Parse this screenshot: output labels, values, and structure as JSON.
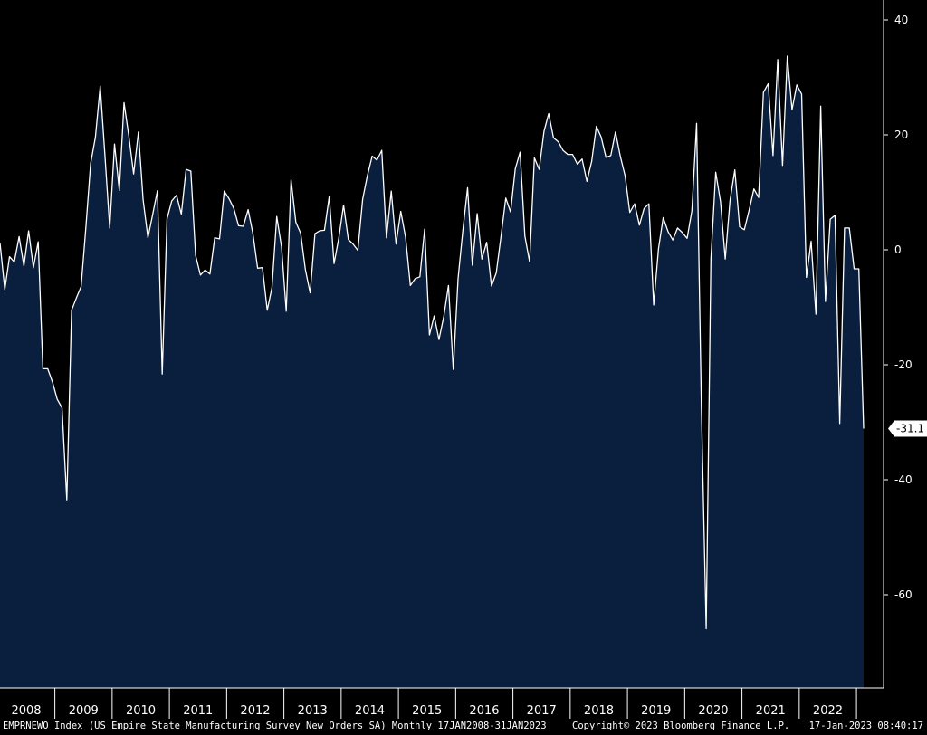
{
  "chart_data": {
    "type": "area",
    "title": "",
    "xlabel": "",
    "ylabel": "",
    "ylim": [
      -75,
      40
    ],
    "y_ticks": [
      40,
      20,
      0,
      -20,
      -40,
      -60
    ],
    "x_ticks": [
      "2008",
      "2009",
      "2010",
      "2011",
      "2012",
      "2013",
      "2014",
      "2015",
      "2016",
      "2017",
      "2018",
      "2019",
      "2020",
      "2021",
      "2022"
    ],
    "grid": false,
    "legend": "none",
    "last_value_label": "-31.1",
    "series": [
      {
        "values": [
          1.2,
          -6.9,
          -1.2,
          -2.1,
          2.3,
          -2.8,
          3.3,
          -3.1,
          1.4,
          -20.7,
          -20.7,
          -23.0,
          -26.0,
          -27.5,
          -43.5,
          -10.5,
          -8.4,
          -6.4,
          4.0,
          15.0,
          19.6,
          28.5,
          16.2,
          3.8,
          18.4,
          10.3,
          25.6,
          19.8,
          13.2,
          20.5,
          8.7,
          2.1,
          6.2,
          10.3,
          -21.6,
          5.4,
          8.5,
          9.5,
          6.2,
          14.0,
          13.7,
          -1.0,
          -4.4,
          -3.5,
          -4.2,
          2.1,
          1.9,
          10.2,
          8.9,
          7.2,
          4.2,
          4.1,
          7.0,
          2.9,
          -3.2,
          -3.1,
          -10.5,
          -6.6,
          5.8,
          0.5,
          -10.7,
          12.2,
          4.8,
          2.9,
          -3.4,
          -7.5,
          2.8,
          3.3,
          3.4,
          9.3,
          -2.4,
          2.0,
          7.8,
          1.8,
          1.0,
          -0.1,
          8.8,
          12.9,
          16.3,
          15.6,
          17.3,
          2.1,
          10.2,
          1.0,
          6.7,
          2.2,
          -6.2,
          -5.0,
          -4.7,
          3.6,
          -14.8,
          -11.5,
          -15.6,
          -11.6,
          -6.2,
          -20.8,
          -5.0,
          3.4,
          10.8,
          -2.7,
          6.3,
          -1.6,
          1.3,
          -6.3,
          -4.0,
          2.3,
          9.0,
          6.6,
          14.1,
          17.0,
          2.4,
          -2.1,
          16.0,
          14.0,
          20.6,
          23.7,
          19.5,
          18.8,
          17.3,
          16.6,
          16.6,
          14.9,
          15.8,
          11.9,
          15.4,
          21.5,
          19.6,
          16.1,
          16.4,
          20.5,
          16.3,
          12.9,
          6.5,
          8.0,
          4.3,
          7.2,
          8.0,
          -9.6,
          0.2,
          5.6,
          3.2,
          1.7,
          3.8,
          3.0,
          2.0,
          6.8,
          22.0,
          -27.4,
          -65.9,
          -1.6,
          13.5,
          8.4,
          -1.6,
          8.6,
          13.9,
          4.0,
          3.5,
          6.9,
          10.6,
          9.1,
          27.4,
          28.9,
          16.4,
          33.1,
          14.7,
          33.7,
          24.4,
          28.7,
          27.1,
          -4.8,
          1.5,
          -11.2,
          25.0,
          -9.0,
          5.3,
          6.0,
          -30.2,
          3.8,
          3.8,
          -3.3,
          -3.3,
          -31.1
        ]
      }
    ],
    "colors": {
      "background": "#000000",
      "area_fill": "#0a1f3d",
      "line": "#ffffff",
      "axis": "#ffffff"
    }
  },
  "footer": {
    "series_text": "EMPRNEWO Index (US Empire State Manufacturing Survey New Orders SA)  Monthly 17JAN2008-31JAN2023",
    "copyright": "Copyright© 2023 Bloomberg Finance L.P.",
    "timestamp": "17-Jan-2023 08:40:17"
  }
}
